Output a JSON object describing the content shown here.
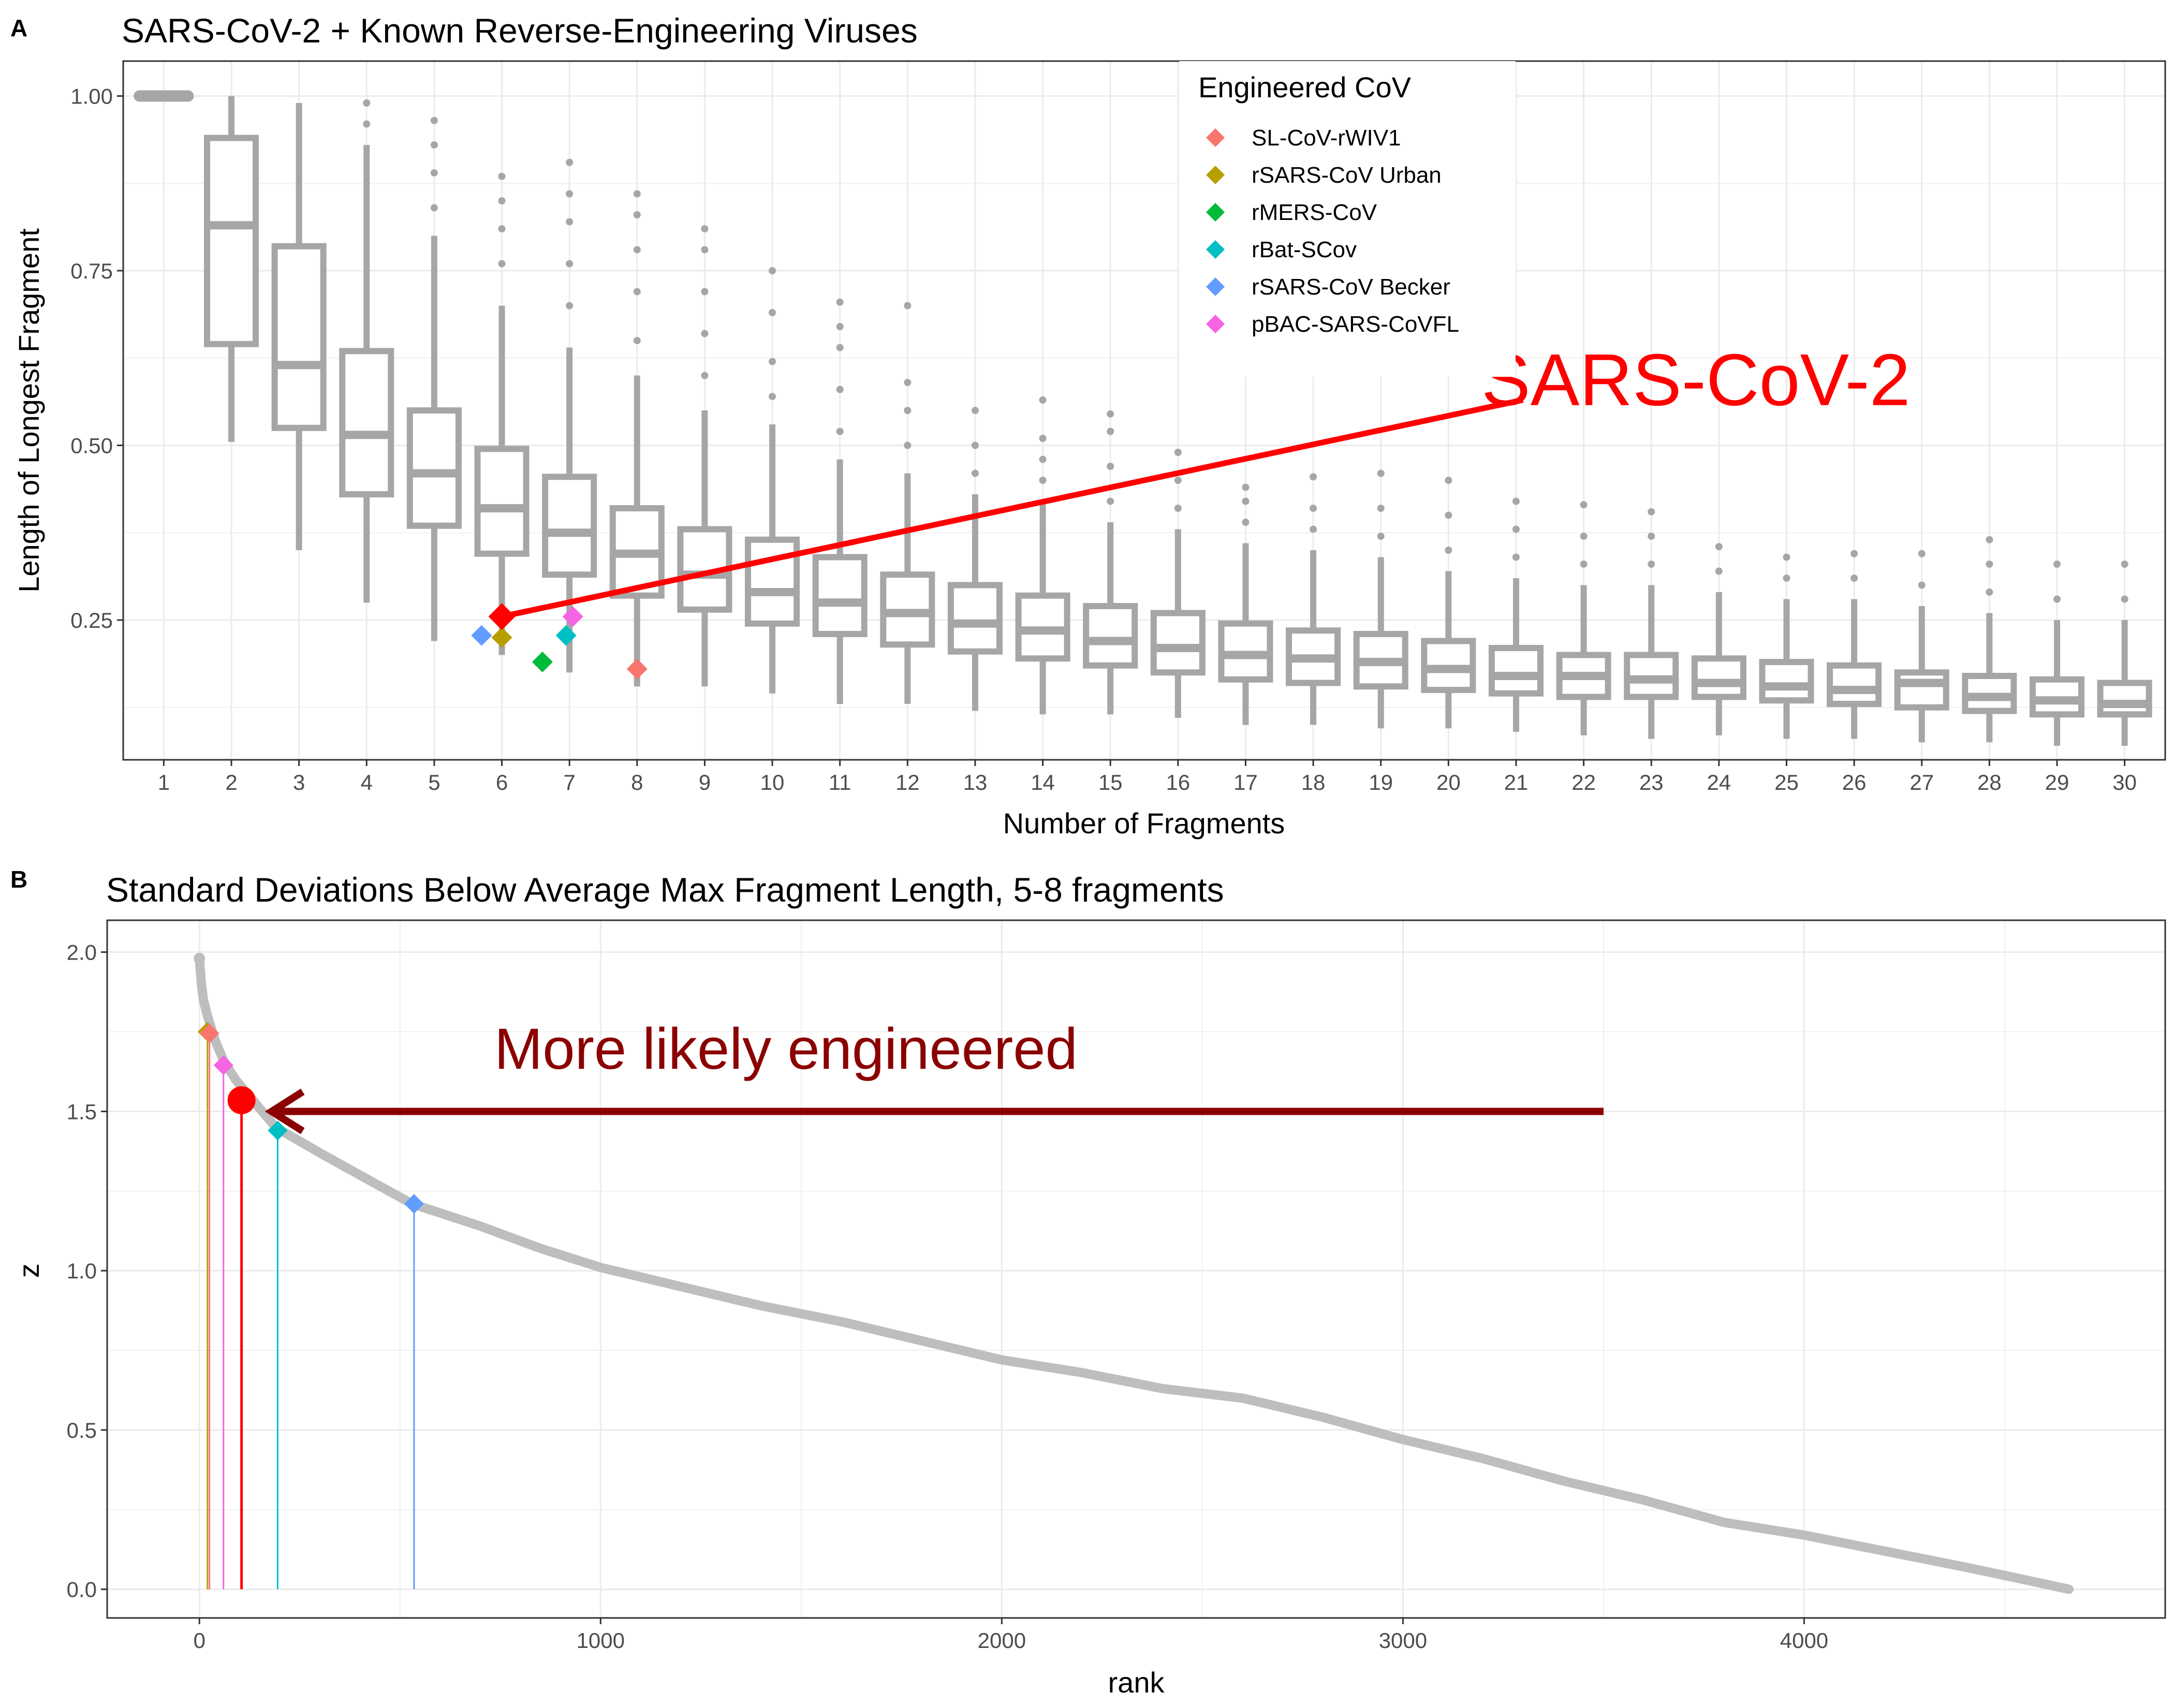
{
  "chart_data": [
    {
      "panel": "A",
      "type": "box",
      "title": "SARS-CoV-2 + Known Reverse-Engineering Viruses",
      "xlabel": "Number of Fragments",
      "ylabel": "Length of Longest Fragment",
      "categories": [
        "1",
        "2",
        "3",
        "4",
        "5",
        "6",
        "7",
        "8",
        "9",
        "10",
        "11",
        "12",
        "13",
        "14",
        "15",
        "16",
        "17",
        "18",
        "19",
        "20",
        "21",
        "22",
        "23",
        "24",
        "25",
        "26",
        "27",
        "28",
        "29",
        "30"
      ],
      "ylim": [
        0.05,
        1.05
      ],
      "yticks": [
        "0.25",
        "0.50",
        "0.75",
        "1.00"
      ],
      "grid": true,
      "box_color": "#A6A6A6",
      "boxes": [
        {
          "q1": 1.0,
          "median": 1.0,
          "q3": 1.0,
          "lo": 1.0,
          "hi": 1.0,
          "outliers": []
        },
        {
          "q1": 0.645,
          "median": 0.815,
          "q3": 0.94,
          "lo": 0.505,
          "hi": 1.0,
          "outliers": []
        },
        {
          "q1": 0.525,
          "median": 0.615,
          "q3": 0.785,
          "lo": 0.35,
          "hi": 0.99,
          "outliers": []
        },
        {
          "q1": 0.43,
          "median": 0.515,
          "q3": 0.635,
          "lo": 0.275,
          "hi": 0.93,
          "outliers": [
            0.96,
            0.99
          ]
        },
        {
          "q1": 0.385,
          "median": 0.46,
          "q3": 0.55,
          "lo": 0.22,
          "hi": 0.8,
          "outliers": [
            0.84,
            0.89,
            0.93,
            0.965
          ]
        },
        {
          "q1": 0.345,
          "median": 0.41,
          "q3": 0.495,
          "lo": 0.2,
          "hi": 0.7,
          "outliers": [
            0.76,
            0.81,
            0.85,
            0.885
          ]
        },
        {
          "q1": 0.315,
          "median": 0.375,
          "q3": 0.455,
          "lo": 0.175,
          "hi": 0.64,
          "outliers": [
            0.7,
            0.76,
            0.82,
            0.86,
            0.905
          ]
        },
        {
          "q1": 0.285,
          "median": 0.345,
          "q3": 0.41,
          "lo": 0.155,
          "hi": 0.6,
          "outliers": [
            0.65,
            0.72,
            0.78,
            0.83,
            0.86
          ]
        },
        {
          "q1": 0.265,
          "median": 0.315,
          "q3": 0.38,
          "lo": 0.155,
          "hi": 0.55,
          "outliers": [
            0.6,
            0.66,
            0.72,
            0.78,
            0.81
          ]
        },
        {
          "q1": 0.245,
          "median": 0.29,
          "q3": 0.365,
          "lo": 0.145,
          "hi": 0.53,
          "outliers": [
            0.57,
            0.62,
            0.69,
            0.75
          ]
        },
        {
          "q1": 0.23,
          "median": 0.275,
          "q3": 0.34,
          "lo": 0.13,
          "hi": 0.48,
          "outliers": [
            0.52,
            0.58,
            0.64,
            0.67,
            0.705
          ]
        },
        {
          "q1": 0.215,
          "median": 0.26,
          "q3": 0.315,
          "lo": 0.13,
          "hi": 0.46,
          "outliers": [
            0.5,
            0.55,
            0.59,
            0.7
          ]
        },
        {
          "q1": 0.205,
          "median": 0.245,
          "q3": 0.3,
          "lo": 0.12,
          "hi": 0.43,
          "outliers": [
            0.46,
            0.5,
            0.55
          ]
        },
        {
          "q1": 0.195,
          "median": 0.235,
          "q3": 0.285,
          "lo": 0.115,
          "hi": 0.42,
          "outliers": [
            0.45,
            0.48,
            0.51,
            0.565
          ]
        },
        {
          "q1": 0.185,
          "median": 0.22,
          "q3": 0.27,
          "lo": 0.115,
          "hi": 0.39,
          "outliers": [
            0.42,
            0.47,
            0.52,
            0.545
          ]
        },
        {
          "q1": 0.175,
          "median": 0.21,
          "q3": 0.26,
          "lo": 0.11,
          "hi": 0.38,
          "outliers": [
            0.41,
            0.45,
            0.49
          ]
        },
        {
          "q1": 0.165,
          "median": 0.2,
          "q3": 0.245,
          "lo": 0.1,
          "hi": 0.36,
          "outliers": [
            0.39,
            0.42,
            0.44
          ]
        },
        {
          "q1": 0.16,
          "median": 0.195,
          "q3": 0.235,
          "lo": 0.1,
          "hi": 0.35,
          "outliers": [
            0.38,
            0.41,
            0.455
          ]
        },
        {
          "q1": 0.155,
          "median": 0.19,
          "q3": 0.23,
          "lo": 0.095,
          "hi": 0.34,
          "outliers": [
            0.37,
            0.41,
            0.46
          ]
        },
        {
          "q1": 0.15,
          "median": 0.18,
          "q3": 0.22,
          "lo": 0.095,
          "hi": 0.32,
          "outliers": [
            0.35,
            0.4,
            0.45
          ]
        },
        {
          "q1": 0.145,
          "median": 0.17,
          "q3": 0.21,
          "lo": 0.09,
          "hi": 0.31,
          "outliers": [
            0.34,
            0.38,
            0.42
          ]
        },
        {
          "q1": 0.14,
          "median": 0.17,
          "q3": 0.2,
          "lo": 0.085,
          "hi": 0.3,
          "outliers": [
            0.33,
            0.37,
            0.415
          ]
        },
        {
          "q1": 0.14,
          "median": 0.165,
          "q3": 0.2,
          "lo": 0.08,
          "hi": 0.3,
          "outliers": [
            0.33,
            0.37,
            0.405
          ]
        },
        {
          "q1": 0.14,
          "median": 0.16,
          "q3": 0.195,
          "lo": 0.085,
          "hi": 0.29,
          "outliers": [
            0.32,
            0.355
          ]
        },
        {
          "q1": 0.135,
          "median": 0.155,
          "q3": 0.19,
          "lo": 0.08,
          "hi": 0.28,
          "outliers": [
            0.31,
            0.34
          ]
        },
        {
          "q1": 0.13,
          "median": 0.15,
          "q3": 0.185,
          "lo": 0.08,
          "hi": 0.28,
          "outliers": [
            0.31,
            0.345
          ]
        },
        {
          "q1": 0.125,
          "median": 0.16,
          "q3": 0.175,
          "lo": 0.075,
          "hi": 0.27,
          "outliers": [
            0.3,
            0.345
          ]
        },
        {
          "q1": 0.12,
          "median": 0.14,
          "q3": 0.17,
          "lo": 0.075,
          "hi": 0.26,
          "outliers": [
            0.29,
            0.33,
            0.365
          ]
        },
        {
          "q1": 0.115,
          "median": 0.135,
          "q3": 0.165,
          "lo": 0.07,
          "hi": 0.25,
          "outliers": [
            0.28,
            0.33
          ]
        },
        {
          "q1": 0.115,
          "median": 0.13,
          "q3": 0.16,
          "lo": 0.07,
          "hi": 0.25,
          "outliers": [
            0.28,
            0.33
          ]
        }
      ],
      "points": [
        {
          "name": "SL-CoV-rWIV1",
          "x": 8.0,
          "y": 0.18,
          "color": "#F8766D"
        },
        {
          "name": "rSARS-CoV Urban",
          "x": 6.0,
          "y": 0.225,
          "color": "#B79F00"
        },
        {
          "name": "rMERS-CoV",
          "x": 6.6,
          "y": 0.19,
          "color": "#00BA38"
        },
        {
          "name": "rBat-SCov",
          "x": 6.95,
          "y": 0.228,
          "color": "#00BFC4"
        },
        {
          "name": "rSARS-CoV Becker",
          "x": 5.7,
          "y": 0.228,
          "color": "#619CFF"
        },
        {
          "name": "pBAC-SARS-CoVFL",
          "x": 7.05,
          "y": 0.255,
          "color": "#F564E3"
        }
      ],
      "highlight": {
        "name": "SARS-CoV-2",
        "x": 6.0,
        "y": 0.255,
        "color": "#FF0000"
      },
      "annotation": {
        "text": "SARS-CoV-2",
        "color": "#FF0000",
        "arrow_from": {
          "x": 21.1,
          "y": 0.565
        },
        "arrow_to": {
          "x": 6.0,
          "y": 0.255
        }
      },
      "legend": {
        "title": "Engineered CoV",
        "position": "top",
        "entries": [
          {
            "label": "SL-CoV-rWIV1",
            "color": "#F8766D"
          },
          {
            "label": "rSARS-CoV Urban",
            "color": "#B79F00"
          },
          {
            "label": "rMERS-CoV",
            "color": "#00BA38"
          },
          {
            "label": "rBat-SCov",
            "color": "#00BFC4"
          },
          {
            "label": "rSARS-CoV Becker",
            "color": "#619CFF"
          },
          {
            "label": "pBAC-SARS-CoVFL",
            "color": "#F564E3"
          }
        ]
      }
    },
    {
      "panel": "B",
      "type": "scatter",
      "title": "Standard Deviations Below Average Max Fragment Length, 5-8 fragments",
      "xlabel": "rank",
      "ylabel": "z",
      "xlim": [
        -230,
        4900
      ],
      "ylim": [
        -0.09,
        2.1
      ],
      "xticks": [
        "0",
        "1000",
        "2000",
        "3000",
        "4000"
      ],
      "yticks": [
        "0.0",
        "0.5",
        "1.0",
        "1.5",
        "2.0"
      ],
      "grid": true,
      "curve_color": "#BEBEBE",
      "curve": [
        [
          0,
          1.98
        ],
        [
          5,
          1.9
        ],
        [
          10,
          1.85
        ],
        [
          20,
          1.8
        ],
        [
          40,
          1.72
        ],
        [
          60,
          1.66
        ],
        [
          90,
          1.6
        ],
        [
          130,
          1.54
        ],
        [
          190,
          1.45
        ],
        [
          300,
          1.37
        ],
        [
          400,
          1.3
        ],
        [
          530,
          1.21
        ],
        [
          700,
          1.14
        ],
        [
          850,
          1.07
        ],
        [
          1000,
          1.01
        ],
        [
          1200,
          0.95
        ],
        [
          1400,
          0.89
        ],
        [
          1600,
          0.84
        ],
        [
          1800,
          0.78
        ],
        [
          2000,
          0.72
        ],
        [
          2200,
          0.68
        ],
        [
          2400,
          0.63
        ],
        [
          2600,
          0.6
        ],
        [
          2800,
          0.54
        ],
        [
          3000,
          0.47
        ],
        [
          3200,
          0.41
        ],
        [
          3400,
          0.34
        ],
        [
          3600,
          0.28
        ],
        [
          3800,
          0.21
        ],
        [
          4000,
          0.17
        ],
        [
          4200,
          0.12
        ],
        [
          4400,
          0.07
        ],
        [
          4550,
          0.03
        ],
        [
          4660,
          0.0
        ]
      ],
      "markers": [
        {
          "name": "rSARS-CoV Urban",
          "x": 20,
          "y": 1.75,
          "color": "#B79F00"
        },
        {
          "name": "SL-CoV-rWIV1",
          "x": 25,
          "y": 1.745,
          "color": "#F8766D"
        },
        {
          "name": "pBAC-SARS-CoVFL",
          "x": 60,
          "y": 1.645,
          "color": "#F564E3"
        },
        {
          "name": "rBat-SCov",
          "x": 195,
          "y": 1.44,
          "color": "#00BFC4"
        },
        {
          "name": "rSARS-CoV Becker",
          "x": 535,
          "y": 1.21,
          "color": "#619CFF"
        }
      ],
      "highlight": {
        "name": "SARS-CoV-2",
        "x": 105,
        "y": 1.535,
        "color": "#FF0000"
      },
      "annotation": {
        "text": "More likely engineered",
        "color": "#8B0000",
        "arrow_from": {
          "x": 3500,
          "y": 1.5
        },
        "arrow_to": {
          "x": 180,
          "y": 1.5
        }
      }
    }
  ]
}
